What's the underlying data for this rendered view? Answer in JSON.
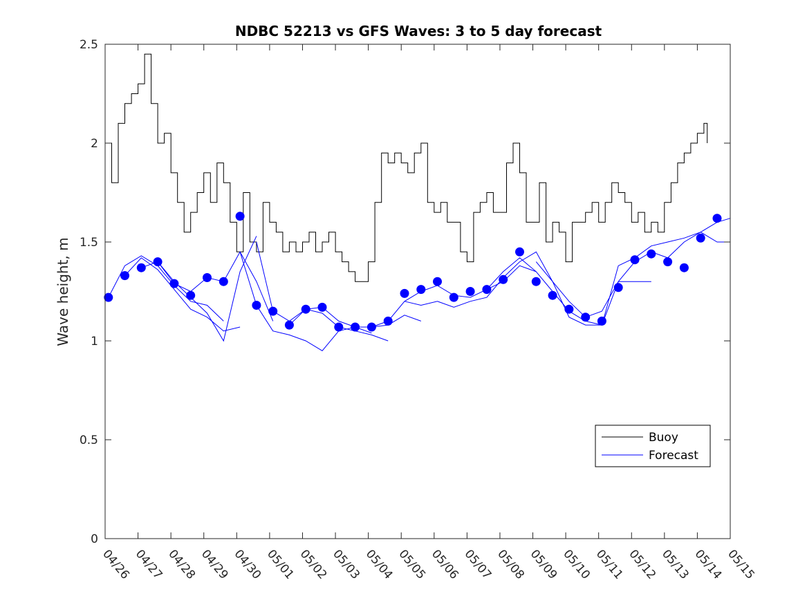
{
  "chart_data": {
    "type": "line",
    "title": "NDBC 52213 vs GFS Waves: 3 to 5 day forecast",
    "ylabel": "Wave height, m",
    "xlabel": "",
    "xlim": [
      0,
      19
    ],
    "ylim": [
      0,
      2.5
    ],
    "x_tick_labels": [
      "04/26",
      "04/27",
      "04/28",
      "04/29",
      "04/30",
      "05/01",
      "05/02",
      "05/03",
      "05/04",
      "05/05",
      "05/06",
      "05/07",
      "05/08",
      "05/09",
      "05/10",
      "05/11",
      "05/12",
      "05/13",
      "05/14",
      "05/15"
    ],
    "y_tick_values": [
      0,
      0.5,
      1,
      1.5,
      2,
      2.5
    ],
    "y_tick_labels": [
      "0",
      "0.5",
      "1",
      "1.5",
      "2",
      "2.5"
    ],
    "grid": false,
    "legend": {
      "position": "lower-right",
      "entries": [
        "Buoy",
        "Forecast"
      ]
    },
    "colors": {
      "buoy": "#000000",
      "forecast": "#0000ff"
    },
    "buoy": {
      "name": "Buoy",
      "x": [
        0,
        0.2,
        0.4,
        0.6,
        0.8,
        1.0,
        1.2,
        1.4,
        1.6,
        1.8,
        2.0,
        2.2,
        2.4,
        2.6,
        2.8,
        3.0,
        3.2,
        3.4,
        3.6,
        3.8,
        4.0,
        4.2,
        4.4,
        4.6,
        4.8,
        5.0,
        5.2,
        5.4,
        5.6,
        5.8,
        6.0,
        6.2,
        6.4,
        6.6,
        6.8,
        7.0,
        7.2,
        7.4,
        7.6,
        7.8,
        8.0,
        8.2,
        8.4,
        8.6,
        8.8,
        9.0,
        9.2,
        9.4,
        9.6,
        9.8,
        10.0,
        10.2,
        10.4,
        10.6,
        10.8,
        11.0,
        11.2,
        11.4,
        11.6,
        11.8,
        12.0,
        12.2,
        12.4,
        12.6,
        12.8,
        13.0,
        13.2,
        13.4,
        13.6,
        13.8,
        14.0,
        14.2,
        14.4,
        14.6,
        14.8,
        15.0,
        15.2,
        15.4,
        15.6,
        15.8,
        16.0,
        16.2,
        16.4,
        16.6,
        16.8,
        17.0,
        17.2,
        17.4,
        17.6,
        17.8,
        18.0,
        18.2,
        18.3
      ],
      "y": [
        2.0,
        1.8,
        2.1,
        2.2,
        2.25,
        2.3,
        2.45,
        2.2,
        2.0,
        2.05,
        1.85,
        1.7,
        1.55,
        1.65,
        1.75,
        1.85,
        1.7,
        1.9,
        1.8,
        1.6,
        1.45,
        1.75,
        1.5,
        1.45,
        1.7,
        1.6,
        1.55,
        1.45,
        1.5,
        1.45,
        1.5,
        1.55,
        1.45,
        1.5,
        1.55,
        1.45,
        1.4,
        1.35,
        1.3,
        1.3,
        1.4,
        1.7,
        1.95,
        1.9,
        1.95,
        1.9,
        1.85,
        1.95,
        2.0,
        1.7,
        1.65,
        1.7,
        1.6,
        1.6,
        1.45,
        1.4,
        1.65,
        1.7,
        1.75,
        1.65,
        1.65,
        1.9,
        2.0,
        1.85,
        1.6,
        1.6,
        1.8,
        1.5,
        1.6,
        1.55,
        1.4,
        1.6,
        1.6,
        1.65,
        1.7,
        1.6,
        1.7,
        1.8,
        1.75,
        1.7,
        1.6,
        1.65,
        1.55,
        1.6,
        1.55,
        1.7,
        1.8,
        1.9,
        1.95,
        2.0,
        2.05,
        2.1,
        2.0
      ]
    },
    "forecast_markers": {
      "name": "Forecast",
      "x": [
        0.1,
        0.6,
        1.1,
        1.6,
        2.1,
        2.6,
        3.1,
        3.6,
        4.1,
        4.6,
        5.1,
        5.6,
        6.1,
        6.6,
        7.1,
        7.6,
        8.1,
        8.6,
        9.1,
        9.6,
        10.1,
        10.6,
        11.1,
        11.6,
        12.1,
        12.6,
        13.1,
        13.6,
        14.1,
        14.6,
        15.1,
        15.6,
        16.1,
        16.6,
        17.1,
        17.6,
        18.1,
        18.6
      ],
      "y": [
        1.22,
        1.33,
        1.37,
        1.4,
        1.29,
        1.23,
        1.32,
        1.3,
        1.63,
        1.18,
        1.15,
        1.08,
        1.16,
        1.17,
        1.07,
        1.07,
        1.07,
        1.1,
        1.24,
        1.26,
        1.3,
        1.22,
        1.25,
        1.26,
        1.31,
        1.45,
        1.3,
        1.23,
        1.16,
        1.12,
        1.1,
        1.27,
        1.41,
        1.44,
        1.4,
        1.37,
        1.52,
        1.62
      ]
    },
    "forecast_lines": [
      {
        "x": [
          0.1,
          0.6,
          1.1,
          1.6,
          2.1,
          2.6,
          3.1,
          3.6
        ],
        "y": [
          1.22,
          1.38,
          1.43,
          1.38,
          1.28,
          1.2,
          1.18,
          1.1
        ]
      },
      {
        "x": [
          0.6,
          1.1,
          1.6,
          2.1,
          2.6,
          3.1,
          3.6,
          4.1
        ],
        "y": [
          1.33,
          1.42,
          1.36,
          1.26,
          1.16,
          1.12,
          1.05,
          1.07
        ]
      },
      {
        "x": [
          1.1,
          1.6,
          2.1,
          2.6,
          3.1,
          3.6,
          4.1,
          4.6
        ],
        "y": [
          1.37,
          1.4,
          1.3,
          1.22,
          1.14,
          1.0,
          1.35,
          1.53
        ]
      },
      {
        "x": [
          1.6,
          2.1,
          2.6,
          3.1,
          3.6,
          4.1,
          4.6,
          5.1
        ],
        "y": [
          1.4,
          1.29,
          1.25,
          1.32,
          1.3,
          1.45,
          1.3,
          1.1
        ]
      },
      {
        "x": [
          4.1,
          4.6,
          5.1,
          5.6,
          6.1,
          6.6,
          7.1,
          7.6,
          8.1
        ],
        "y": [
          1.45,
          1.18,
          1.05,
          1.03,
          1.0,
          0.95,
          1.05,
          1.07,
          1.04
        ]
      },
      {
        "x": [
          4.6,
          5.1,
          5.6,
          6.1,
          6.6,
          7.1,
          7.6,
          8.1,
          8.6
        ],
        "y": [
          1.5,
          1.15,
          1.1,
          1.16,
          1.14,
          1.07,
          1.05,
          1.03,
          1.0
        ]
      },
      {
        "x": [
          5.6,
          6.1,
          6.6,
          7.1,
          7.6,
          8.1,
          8.6,
          9.1,
          9.6
        ],
        "y": [
          1.08,
          1.16,
          1.17,
          1.1,
          1.07,
          1.07,
          1.08,
          1.13,
          1.1
        ]
      },
      {
        "x": [
          8.1,
          8.6,
          9.1,
          9.6,
          10.1,
          10.6,
          11.1,
          11.6,
          12.1,
          12.6,
          13.1
        ],
        "y": [
          1.07,
          1.1,
          1.2,
          1.25,
          1.28,
          1.23,
          1.22,
          1.26,
          1.35,
          1.42,
          1.35
        ]
      },
      {
        "x": [
          9.1,
          9.6,
          10.1,
          10.6,
          11.1,
          11.6,
          12.1,
          12.6,
          13.1,
          13.6,
          14.1,
          14.6
        ],
        "y": [
          1.2,
          1.18,
          1.2,
          1.17,
          1.2,
          1.22,
          1.32,
          1.4,
          1.45,
          1.3,
          1.2,
          1.12
        ]
      },
      {
        "x": [
          11.6,
          12.1,
          12.6,
          13.1,
          13.6,
          14.1,
          14.6,
          15.1,
          15.6,
          16.1,
          16.6
        ],
        "y": [
          1.26,
          1.3,
          1.38,
          1.35,
          1.25,
          1.15,
          1.1,
          1.08,
          1.3,
          1.3,
          1.3
        ]
      },
      {
        "x": [
          13.1,
          13.6,
          14.1,
          14.6,
          15.1,
          15.6,
          16.1,
          16.6,
          17.1,
          17.6,
          18.1,
          18.6,
          19.0
        ],
        "y": [
          1.4,
          1.3,
          1.12,
          1.08,
          1.08,
          1.38,
          1.42,
          1.48,
          1.5,
          1.52,
          1.55,
          1.6,
          1.62
        ]
      },
      {
        "x": [
          14.6,
          15.1,
          15.6,
          16.1,
          16.6,
          17.1,
          17.6,
          18.1,
          18.6,
          19.0
        ],
        "y": [
          1.12,
          1.15,
          1.3,
          1.4,
          1.45,
          1.42,
          1.5,
          1.55,
          1.5,
          1.5
        ]
      }
    ]
  }
}
